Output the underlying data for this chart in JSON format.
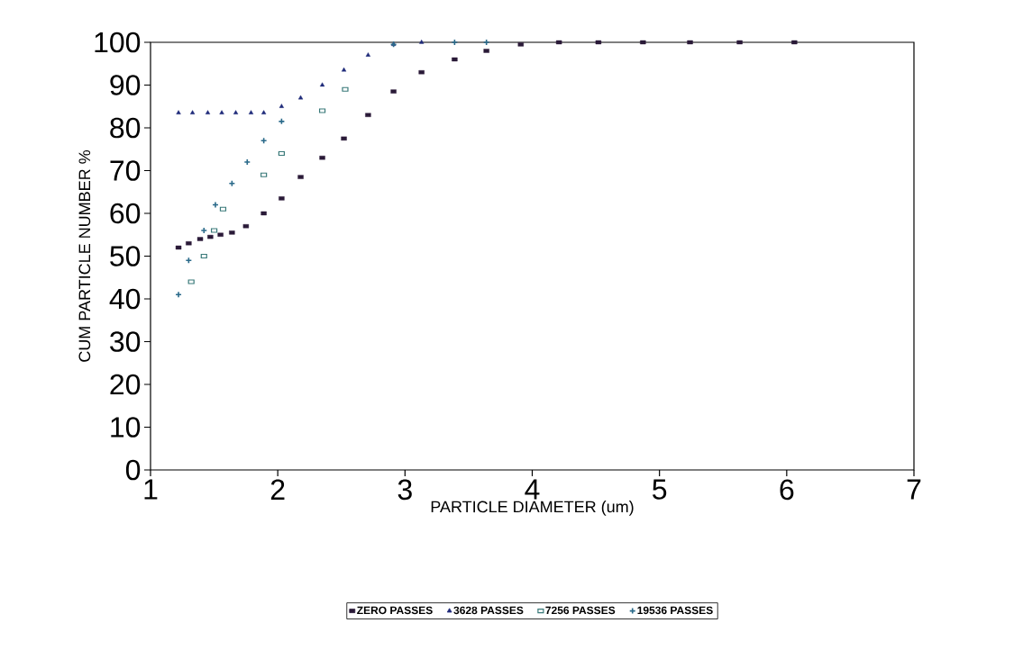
{
  "chart_data": {
    "type": "scatter",
    "xlabel": "PARTICLE DIAMETER (um)",
    "ylabel": "CUM PARTICLE NUMBER %",
    "xlim": [
      1,
      7
    ],
    "xticks": [
      1,
      2,
      3,
      4,
      5,
      6,
      7
    ],
    "ylim": [
      0,
      100
    ],
    "yticks": [
      0,
      10,
      20,
      30,
      40,
      50,
      60,
      70,
      80,
      90,
      100
    ],
    "grid": false,
    "legend": "bottom",
    "series": [
      {
        "name": "ZERO PASSES",
        "color": "#2a1a38",
        "marker": "square",
        "x": [
          1.22,
          1.3,
          1.39,
          1.47,
          1.55,
          1.64,
          1.75,
          1.89,
          2.03,
          2.18,
          2.35,
          2.52,
          2.71,
          2.91,
          3.13,
          3.39,
          3.64,
          3.91,
          4.21,
          4.52,
          4.87,
          5.24,
          5.63,
          6.06
        ],
        "values": [
          52,
          53,
          54,
          54.5,
          55,
          55.5,
          57,
          60,
          63.5,
          68.5,
          73,
          77.5,
          83,
          88.5,
          93,
          96,
          98,
          99.5,
          100,
          100,
          100,
          100,
          100,
          100
        ]
      },
      {
        "name": "3628 PASSES",
        "color": "#1f2a7a",
        "marker": "triangle",
        "x": [
          1.22,
          1.33,
          1.45,
          1.56,
          1.67,
          1.79,
          1.89,
          2.03,
          2.18,
          2.35,
          2.52,
          2.71,
          2.91,
          3.13
        ],
        "values": [
          83.5,
          83.5,
          83.5,
          83.5,
          83.5,
          83.5,
          83.5,
          85,
          87,
          90,
          93.5,
          97,
          99.5,
          100
        ]
      },
      {
        "name": "7256 PASSES",
        "color": "#3a7a7a",
        "marker": "square open",
        "x": [
          1.32,
          1.42,
          1.5,
          1.57,
          1.89,
          2.03,
          2.35,
          2.53
        ],
        "values": [
          44,
          50,
          56,
          61,
          69,
          74,
          84,
          89
        ]
      },
      {
        "name": "19536 PASSES",
        "color": "#2a6a8a",
        "marker": "cross",
        "x": [
          1.22,
          1.3,
          1.42,
          1.51,
          1.64,
          1.76,
          1.89,
          2.03,
          2.91,
          3.39,
          3.64
        ],
        "values": [
          41,
          49,
          56,
          62,
          67,
          72,
          77,
          81.5,
          99.5,
          100,
          100
        ]
      }
    ]
  }
}
